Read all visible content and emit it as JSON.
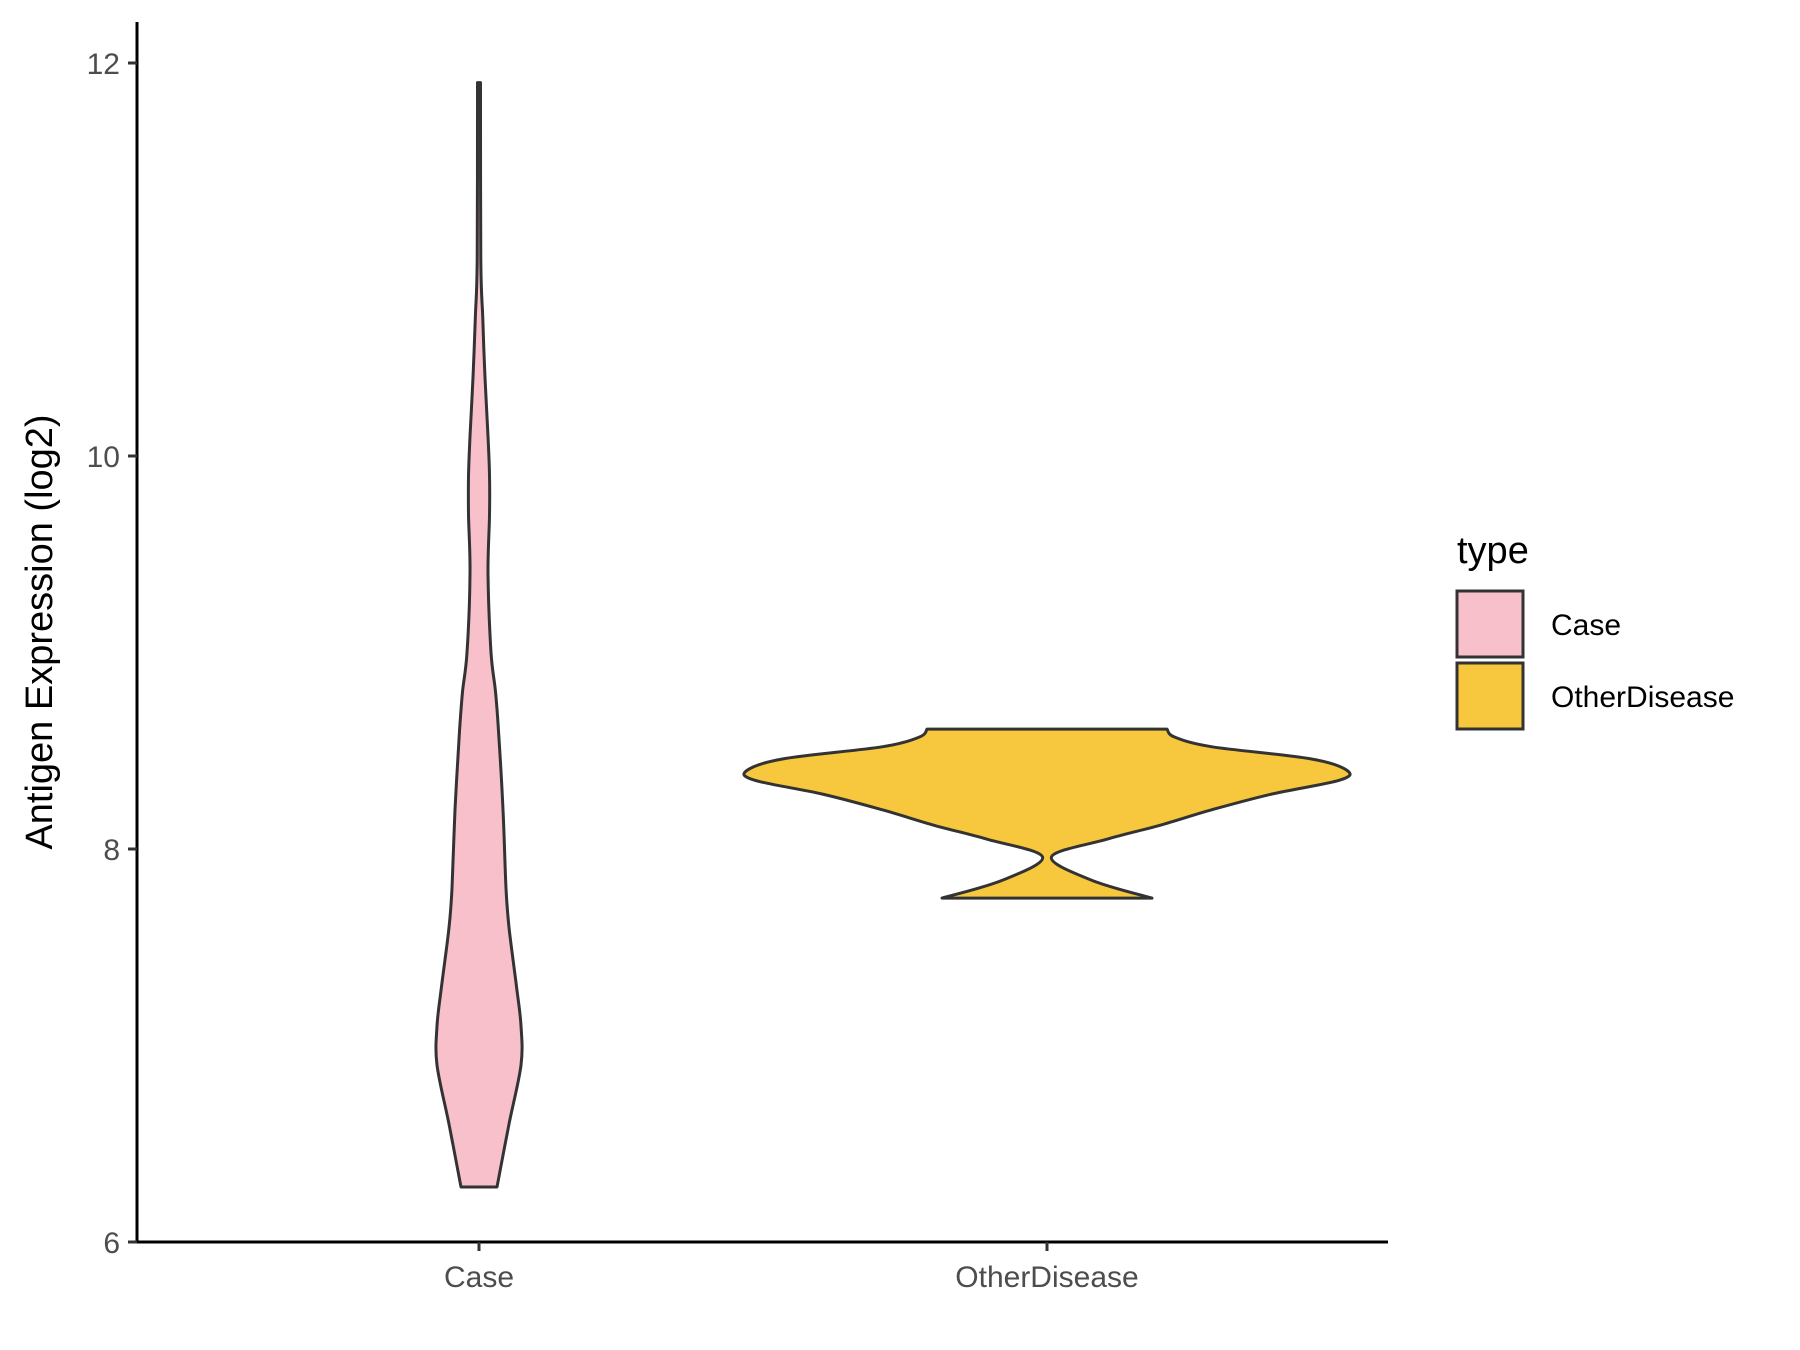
{
  "chart_data": {
    "type": "violin",
    "title": "",
    "xlabel": "",
    "ylabel": "Antigen Expression (log2)",
    "ylim": [
      6,
      12.2
    ],
    "yticks": [
      6,
      8,
      10,
      12
    ],
    "ytick_labels": [
      "6",
      "8",
      "10",
      "12"
    ],
    "categories": [
      "Case",
      "OtherDisease"
    ],
    "grid": false,
    "legend": {
      "title": "type",
      "placement": "right",
      "entries": [
        {
          "label": "Case",
          "color": "#F8C0CB"
        },
        {
          "label": "OtherDisease",
          "color": "#F7C73E"
        }
      ]
    },
    "series": [
      {
        "name": "Case",
        "color": "#F8C0CB",
        "min": 6.28,
        "max": 11.9,
        "density_profile": [
          [
            6.28,
            0.12
          ],
          [
            6.6,
            0.2
          ],
          [
            6.9,
            0.28
          ],
          [
            7.1,
            0.28
          ],
          [
            7.3,
            0.25
          ],
          [
            7.6,
            0.2
          ],
          [
            7.8,
            0.18
          ],
          [
            8.2,
            0.16
          ],
          [
            8.6,
            0.13
          ],
          [
            8.8,
            0.11
          ],
          [
            9.0,
            0.08
          ],
          [
            9.4,
            0.06
          ],
          [
            9.7,
            0.07
          ],
          [
            9.9,
            0.07
          ],
          [
            10.1,
            0.06
          ],
          [
            10.4,
            0.04
          ],
          [
            10.7,
            0.025
          ],
          [
            11.0,
            0.012
          ],
          [
            11.9,
            0.01
          ]
        ]
      },
      {
        "name": "OtherDisease",
        "color": "#F7C73E",
        "min": 7.75,
        "max": 8.61,
        "density_profile": [
          [
            7.75,
            0.7
          ],
          [
            7.84,
            0.3
          ],
          [
            7.96,
            0.03
          ],
          [
            8.05,
            0.4
          ],
          [
            8.12,
            0.75
          ],
          [
            8.2,
            1.1
          ],
          [
            8.28,
            1.5
          ],
          [
            8.35,
            1.95
          ],
          [
            8.4,
            2.0
          ],
          [
            8.46,
            1.75
          ],
          [
            8.52,
            1.1
          ],
          [
            8.57,
            0.85
          ],
          [
            8.61,
            0.8
          ]
        ]
      }
    ]
  }
}
